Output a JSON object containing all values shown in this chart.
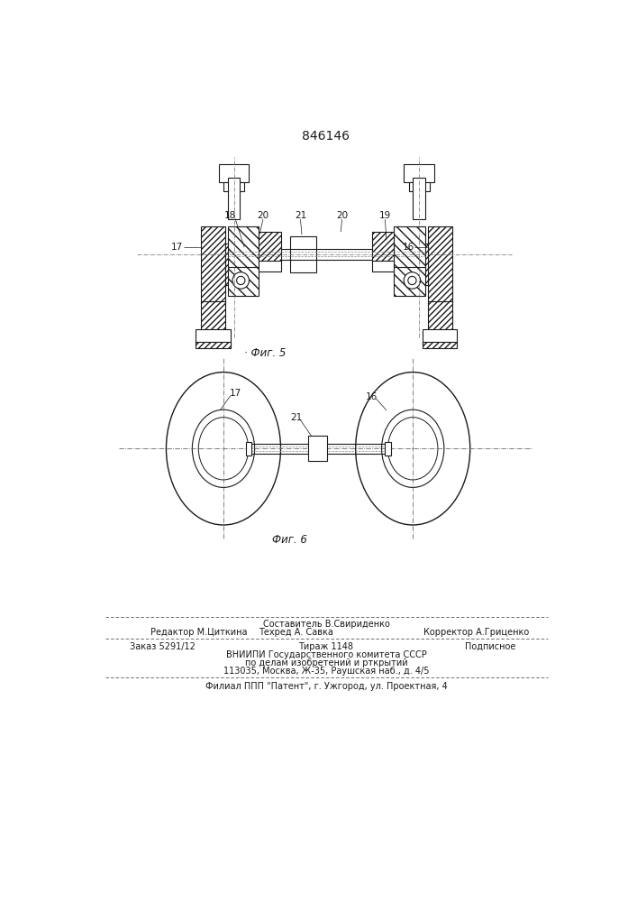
{
  "patent_number": "846146",
  "bg_color": "#ffffff",
  "line_color": "#1a1a1a",
  "text_color": "#1a1a1a",
  "hatch_color": "#1a1a1a",
  "footer_line1_left": "Редактор М.Циткина",
  "footer_line1_center": "Составитель В.Свириденко",
  "footer_line2_center": "Техред А. Савка",
  "footer_line2_right": "Корректор А.Гриценко",
  "footer_order": "Заказ 5291/12",
  "footer_tirazh": "Тираж 1148",
  "footer_podpisnoe": "Подписное",
  "footer_vniip": "ВНИИПИ Государственного комитета СССР",
  "footer_po_delam": "по делам изобретений и рткрытий",
  "footer_address": "113035, Москва, Ж-35, Раушская наб., д. 4/5",
  "footer_filial": "Филиал ППП \"Патент\", г. Ужгород, ул. Проектная, 4"
}
